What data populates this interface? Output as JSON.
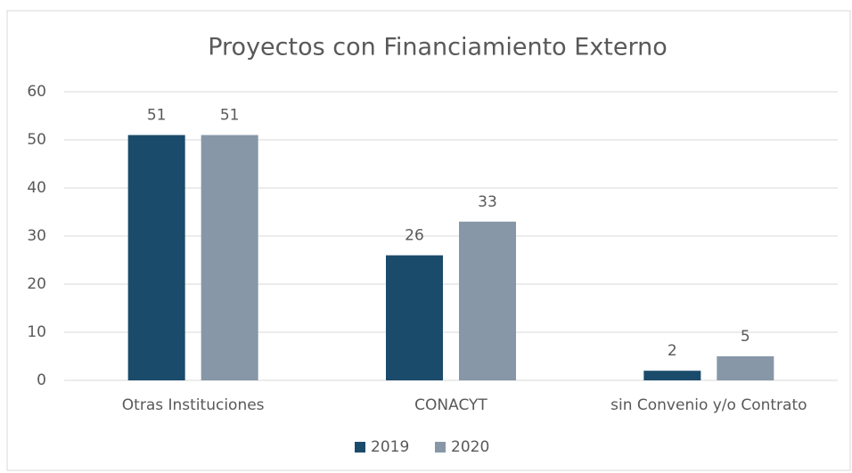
{
  "chart_data": {
    "type": "bar",
    "title": "Proyectos con Financiamiento Externo",
    "categories": [
      "Otras Instituciones",
      "CONACYT",
      "sin Convenio y/o Contrato"
    ],
    "series": [
      {
        "name": "2019",
        "color": "#1b4b6b",
        "values": [
          51,
          26,
          2
        ]
      },
      {
        "name": "2020",
        "color": "#8797a8",
        "values": [
          51,
          33,
          5
        ]
      }
    ],
    "ylim": [
      0,
      60
    ],
    "yticks": [
      0,
      10,
      20,
      30,
      40,
      50,
      60
    ],
    "grid": true,
    "legend": "bottom"
  }
}
